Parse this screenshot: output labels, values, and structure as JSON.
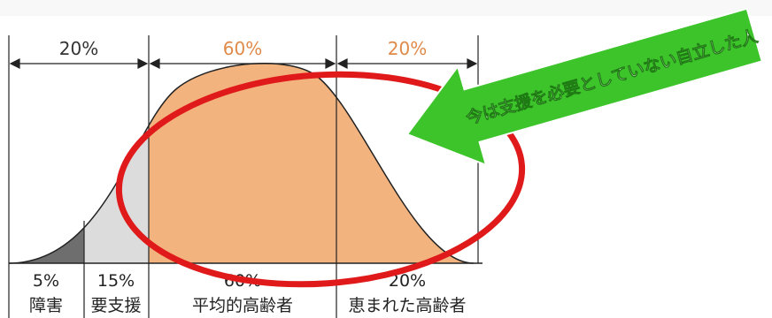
{
  "top_segments": [
    {
      "label": "20%",
      "color": "#333333"
    },
    {
      "label": "60%",
      "color": "#e08a4a"
    },
    {
      "label": "20%",
      "color": "#e08a4a"
    }
  ],
  "bottom_segments": [
    {
      "percent": "5%",
      "name": "障害"
    },
    {
      "percent": "15%",
      "name": "要支援"
    },
    {
      "percent": "60%",
      "name": "平均的高齢者"
    },
    {
      "percent": "20%",
      "name": "恵まれた高齢者"
    }
  ],
  "callout": {
    "text": "今は支援を必要としていない自立した人",
    "arrow_color": "#3cc42a",
    "text_color": "#ffffff"
  },
  "highlight_color": "#e01a1a",
  "colors": {
    "dark_gray_fill": "#6e6e6e",
    "light_gray_fill": "#dcdcdc",
    "orange_fill": "#f3b37e",
    "line": "#222222"
  }
}
